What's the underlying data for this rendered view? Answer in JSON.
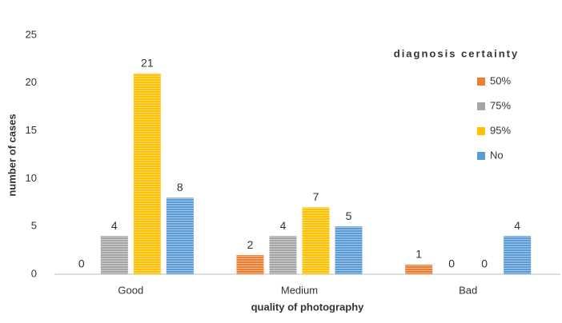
{
  "chart_data": {
    "type": "bar",
    "x_label": "quality of photography",
    "y_label": "number of cases",
    "legend_title": "diagnosis certainty",
    "categories": [
      "Good",
      "Medium",
      "Bad"
    ],
    "series": [
      {
        "name": "50%",
        "color": "#ed7d31",
        "values": [
          0,
          2,
          1
        ]
      },
      {
        "name": "75%",
        "color": "#a5a5a5",
        "values": [
          4,
          4,
          0
        ]
      },
      {
        "name": "95%",
        "color": "#ffc000",
        "values": [
          21,
          7,
          0
        ]
      },
      {
        "name": "No",
        "color": "#5b9bd5",
        "values": [
          8,
          5,
          4
        ]
      }
    ],
    "ylim": [
      0,
      25
    ],
    "yticks": [
      0,
      5,
      10,
      15,
      20,
      25
    ],
    "grid": false,
    "legend_position": "right"
  }
}
